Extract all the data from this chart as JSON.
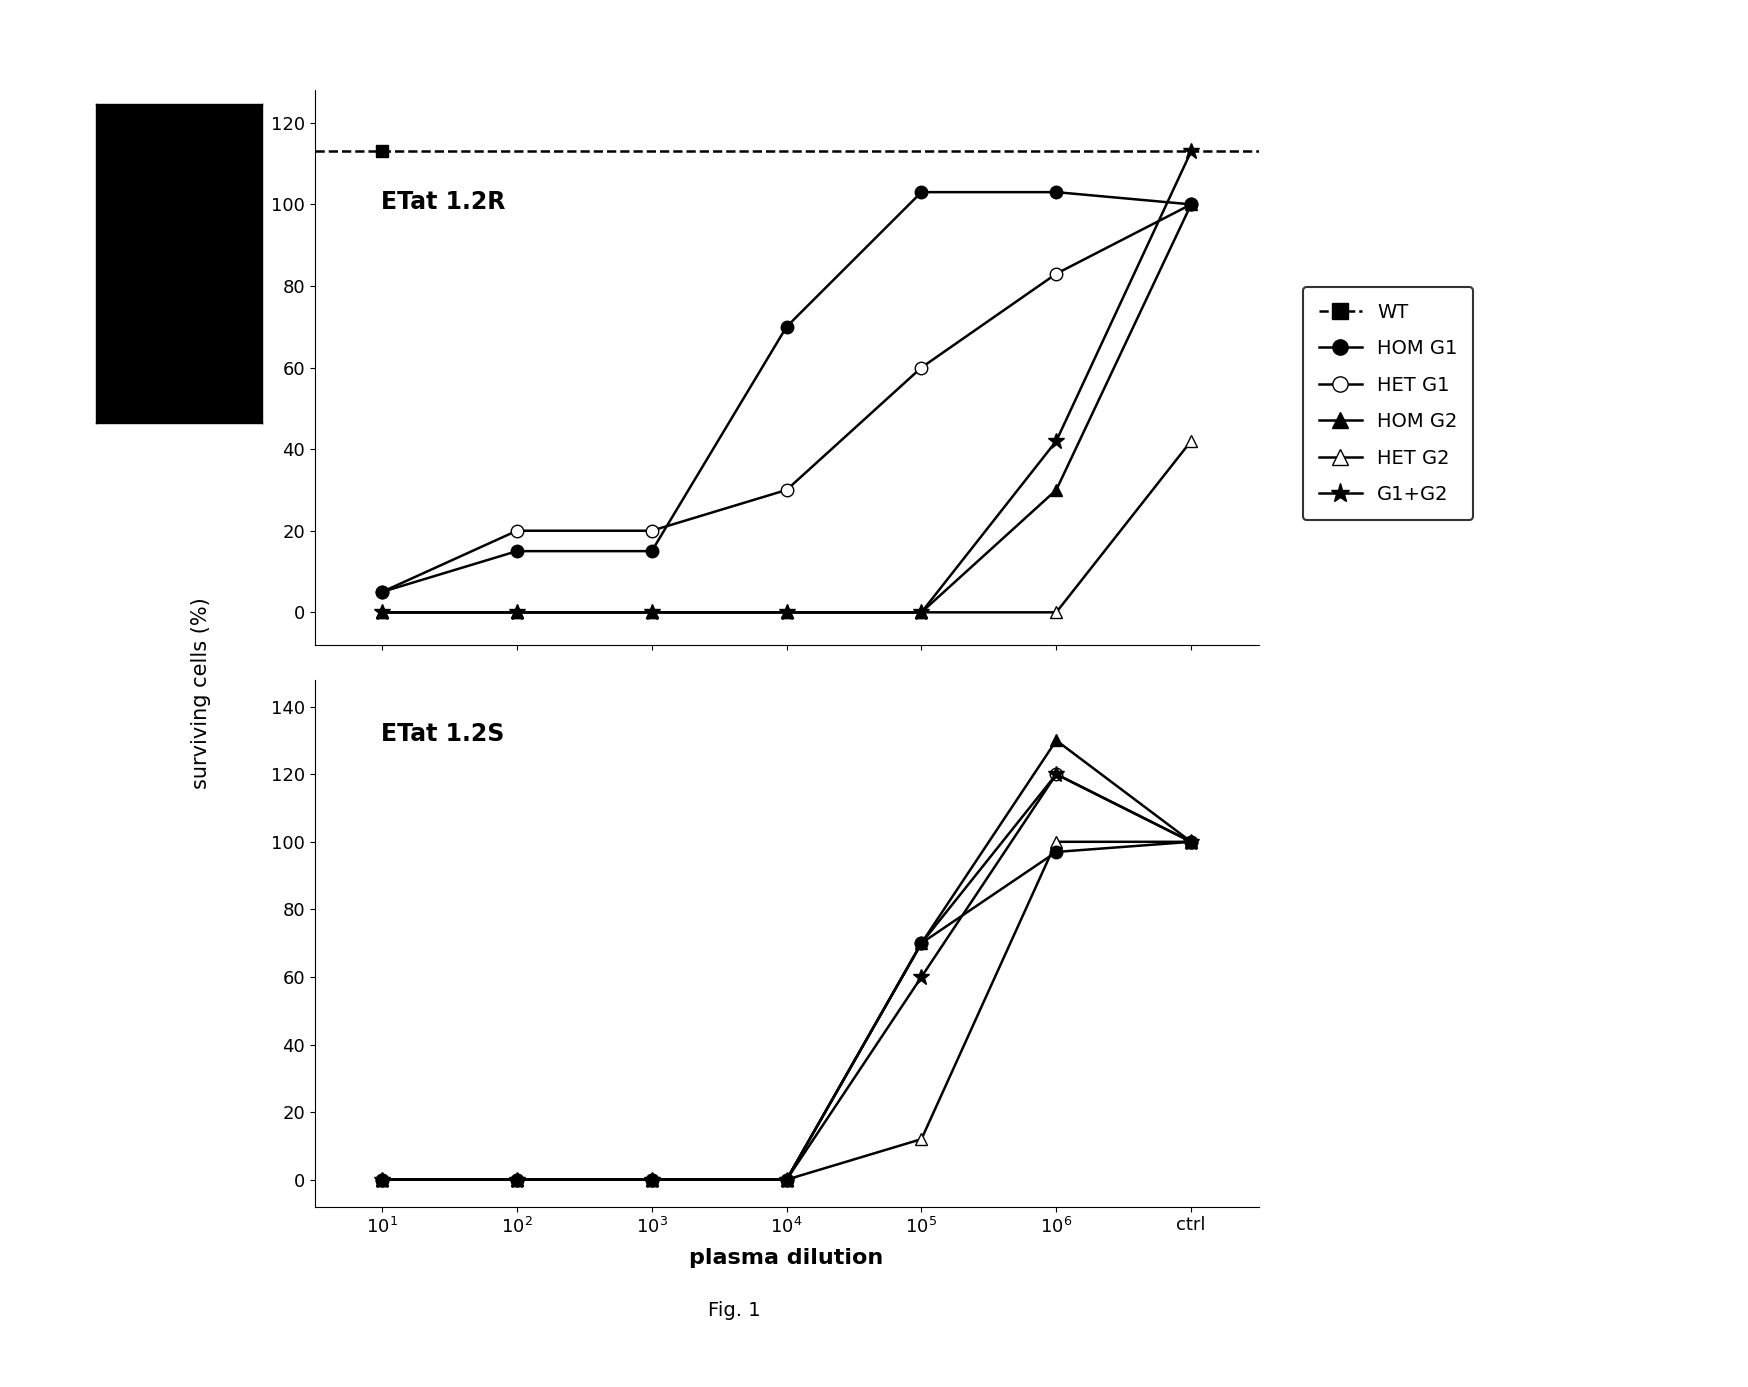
{
  "top_label": "ETat 1.2R",
  "bottom_label": "ETat 1.2S",
  "xlabel": "plasma dilution",
  "ylabel": "surviving cells (%)",
  "fig_label": "Fig. 1",
  "x_positions": [
    1,
    2,
    3,
    4,
    5,
    6,
    7
  ],
  "top": {
    "ylim": [
      -8,
      128
    ],
    "yticks": [
      0,
      20,
      40,
      60,
      80,
      100,
      120
    ],
    "WT_x": [
      1
    ],
    "WT_y": [
      113
    ],
    "HOM_G1_x": [
      1,
      2,
      3,
      4,
      5,
      6,
      7
    ],
    "HOM_G1_y": [
      5,
      15,
      15,
      70,
      103,
      103,
      100
    ],
    "HET_G1_x": [
      1,
      2,
      3,
      4,
      5,
      6,
      7
    ],
    "HET_G1_y": [
      5,
      20,
      20,
      30,
      60,
      83,
      100
    ],
    "HOM_G2_x": [
      1,
      2,
      3,
      4,
      5,
      6,
      7
    ],
    "HOM_G2_y": [
      0,
      0,
      0,
      0,
      0,
      30,
      100
    ],
    "HET_G2_x": [
      1,
      2,
      3,
      4,
      5,
      6,
      7
    ],
    "HET_G2_y": [
      0,
      0,
      0,
      0,
      0,
      0,
      42
    ],
    "G1G2_x": [
      1,
      2,
      3,
      4,
      5,
      6,
      7
    ],
    "G1G2_y": [
      0,
      0,
      0,
      0,
      0,
      42,
      113
    ]
  },
  "bottom": {
    "ylim": [
      -8,
      148
    ],
    "yticks": [
      0,
      20,
      40,
      60,
      80,
      100,
      120,
      140
    ],
    "HOM_G1_x": [
      1,
      2,
      3,
      4,
      5,
      6,
      7
    ],
    "HOM_G1_y": [
      0,
      0,
      0,
      0,
      70,
      97,
      100
    ],
    "HET_G1_x": [
      1,
      2,
      3,
      4,
      5,
      6,
      7
    ],
    "HET_G1_y": [
      0,
      0,
      0,
      0,
      70,
      120,
      100
    ],
    "HOM_G2_x": [
      1,
      2,
      3,
      4,
      5,
      6,
      7
    ],
    "HOM_G2_y": [
      0,
      0,
      0,
      0,
      70,
      130,
      100
    ],
    "HET_G2_x": [
      1,
      2,
      3,
      4,
      5,
      6,
      7
    ],
    "HET_G2_y": [
      0,
      0,
      0,
      0,
      12,
      100,
      100
    ],
    "G1G2_x": [
      1,
      2,
      3,
      4,
      5,
      6,
      7
    ],
    "G1G2_y": [
      0,
      0,
      0,
      0,
      60,
      120,
      100
    ]
  }
}
